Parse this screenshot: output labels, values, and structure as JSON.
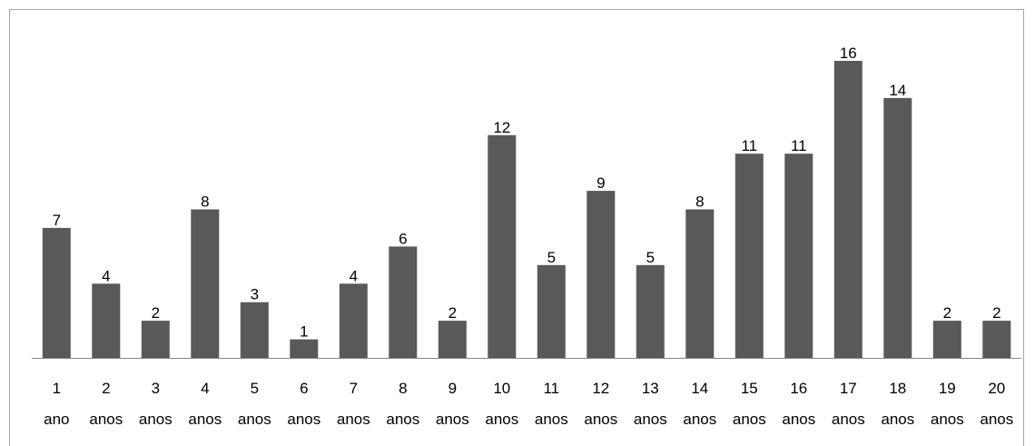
{
  "chart_data": {
    "type": "bar",
    "title": "",
    "xlabel": "",
    "ylabel": "",
    "categories": [
      [
        "1",
        "ano"
      ],
      [
        "2",
        "anos"
      ],
      [
        "3",
        "anos"
      ],
      [
        "4",
        "anos"
      ],
      [
        "5",
        "anos"
      ],
      [
        "6",
        "anos"
      ],
      [
        "7",
        "anos"
      ],
      [
        "8",
        "anos"
      ],
      [
        "9",
        "anos"
      ],
      [
        "10",
        "anos"
      ],
      [
        "11",
        "anos"
      ],
      [
        "12",
        "anos"
      ],
      [
        "13",
        "anos"
      ],
      [
        "14",
        "anos"
      ],
      [
        "15",
        "anos"
      ],
      [
        "16",
        "anos"
      ],
      [
        "17",
        "anos"
      ],
      [
        "18",
        "anos"
      ],
      [
        "19",
        "anos"
      ],
      [
        "20",
        "anos"
      ]
    ],
    "values": [
      7,
      4,
      2,
      8,
      3,
      1,
      4,
      6,
      2,
      12,
      5,
      9,
      5,
      8,
      11,
      11,
      16,
      14,
      2,
      2
    ],
    "ylim": [
      0,
      16
    ],
    "grid": false,
    "legend": "none",
    "bar_color": "#595959",
    "axis_color": "#868686"
  }
}
